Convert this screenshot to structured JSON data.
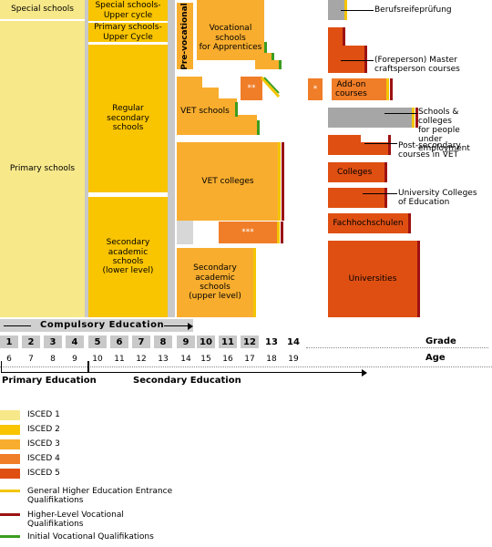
{
  "boxes": {
    "special_schools": "Special schools",
    "primary_schools": "Primary schools",
    "special_upper": "Special schools-\nUpper cycle",
    "primary_upper": "Primary schools-\nUpper Cycle",
    "regular_secondary": "Regular\nsecondary\nschools",
    "secondary_academic_lower": "Secondary\nacademic\nschools\n(lower level)",
    "pre_vocational": "Pre-vocational",
    "vocational_apprentices": "Vocational\nschools\nfor Apprentices",
    "vet_schools": "VET schools",
    "vet_colleges": "VET colleges",
    "secondary_academic_upper": "Secondary\nacademic\nschools\n(upper level)",
    "double_star": "**",
    "triple_star": "***",
    "single_star": "*",
    "addon": "Add-on\ncourses",
    "colleges": "Colleges",
    "fachhochschulen": "Fachhochschulen",
    "universities": "Universities"
  },
  "labels": {
    "berufsreife": "Berufsreifeprüfung",
    "master": "(Foreperson) Master\ncraftsperson courses",
    "schools_employment": "Schools & colleges\nfor people\nunder employment",
    "post_secondary": "Post-secondary\ncourses in VET",
    "uni_colleges_education": "University Colleges\nof Education"
  },
  "axis": {
    "compulsory": "Compulsory Education",
    "grade_label": "Grade",
    "age_label": "Age",
    "grades": [
      "1",
      "2",
      "3",
      "4",
      "5",
      "6",
      "7",
      "8",
      "9",
      "10",
      "11",
      "12",
      "13",
      "14"
    ],
    "ages": [
      "6",
      "7",
      "8",
      "9",
      "10",
      "11",
      "12",
      "13",
      "14",
      "15",
      "16",
      "17",
      "18",
      "19"
    ],
    "primary_education": "Primary Education",
    "secondary_education": "Secondary Education"
  },
  "legend": [
    {
      "label": "ISCED 1",
      "color": "#f7e88a",
      "kind": "swatch"
    },
    {
      "label": "ISCED 2",
      "color": "#f9c400",
      "kind": "swatch"
    },
    {
      "label": "ISCED 3",
      "color": "#f8ad2e",
      "kind": "swatch"
    },
    {
      "label": "ISCED 4",
      "color": "#f07d28",
      "kind": "swatch"
    },
    {
      "label": "ISCED 5",
      "color": "#df4f12",
      "kind": "swatch"
    },
    {
      "label": "General Higher Education Entrance\nQualifikations",
      "color": "#f3c500",
      "kind": "line"
    },
    {
      "label": "Higher-Level Vocational\nQualifikations",
      "color": "#9c1212",
      "kind": "line"
    },
    {
      "label": "Initial Vocational Qualifikations",
      "color": "#3a9d1e",
      "kind": "line"
    }
  ]
}
